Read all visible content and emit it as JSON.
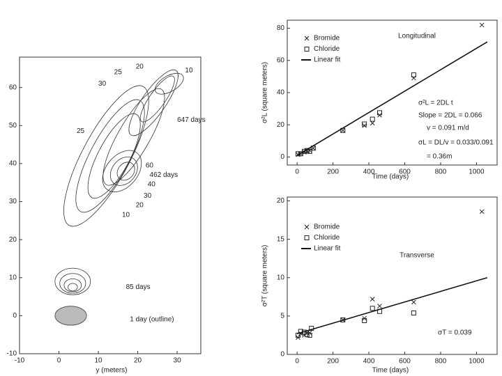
{
  "chart_data": [
    {
      "type": "contour",
      "x_label": "y (meters)",
      "xlim": [
        -10,
        36
      ],
      "ylim": [
        -10,
        68
      ],
      "xticks": [
        -10,
        0,
        10,
        20,
        30
      ],
      "yticks": [
        -10,
        0,
        10,
        20,
        30,
        40,
        50,
        60
      ],
      "annotations": [
        "20",
        "25",
        "10",
        "30",
        "647 days",
        "25",
        "60",
        "462 days",
        "40",
        "30",
        "20",
        "10",
        "85 days",
        "1 day (outline)"
      ]
    },
    {
      "type": "scatter",
      "title": "Longitudinal",
      "x_label": "Time (days)",
      "y_label": "σ²L (square meters)",
      "xlim": [
        -55,
        1115
      ],
      "ylim": [
        -5,
        85
      ],
      "xticks": [
        0,
        200,
        400,
        600,
        800,
        1000
      ],
      "yticks": [
        0,
        20,
        40,
        60,
        80
      ],
      "series": [
        {
          "name": "Bromide",
          "marker": "x",
          "color": "#222",
          "x": [
            5,
            20,
            40,
            55,
            70,
            90,
            255,
            375,
            420,
            460,
            650,
            1030
          ],
          "values": [
            1.5,
            2,
            3,
            3.5,
            4,
            5.5,
            16.5,
            19.5,
            21,
            26,
            49,
            82
          ]
        },
        {
          "name": "Chloride",
          "marker": "square",
          "color": "#222",
          "x": [
            5,
            20,
            40,
            55,
            70,
            90,
            255,
            375,
            420,
            460,
            650
          ],
          "values": [
            2,
            2,
            3.5,
            4,
            3.5,
            5.5,
            16.5,
            20.5,
            23.5,
            27.5,
            51
          ]
        },
        {
          "name": "Linear fit",
          "marker": "line",
          "color": "#111",
          "x": [
            0,
            1060
          ],
          "values": [
            1,
            71.5
          ]
        }
      ],
      "annotations": [
        "σ²L = 2DL t",
        "Slope = 2DL = 0.066",
        "v = 0.091 m/d",
        "σL = DL/v = 0.033/0.091",
        "= 0.36m"
      ]
    },
    {
      "type": "scatter",
      "title": "Transverse",
      "x_label": "Time (days)",
      "y_label": "σ²T (square meters)",
      "xlim": [
        -55,
        1115
      ],
      "ylim": [
        0,
        20.5
      ],
      "xticks": [
        0,
        200,
        400,
        600,
        800,
        1000
      ],
      "yticks": [
        0,
        5,
        10,
        15,
        20
      ],
      "series": [
        {
          "name": "Bromide",
          "marker": "x",
          "color": "#222",
          "x": [
            5,
            20,
            40,
            55,
            70,
            255,
            375,
            420,
            460,
            650,
            1030
          ],
          "values": [
            2.2,
            2.7,
            2.5,
            2.8,
            2.8,
            4.5,
            4.7,
            7.2,
            6.3,
            6.8,
            18.6
          ]
        },
        {
          "name": "Chloride",
          "marker": "square",
          "color": "#222",
          "x": [
            5,
            20,
            40,
            55,
            70,
            80,
            255,
            375,
            420,
            460,
            650
          ],
          "values": [
            2.5,
            3,
            2.9,
            2.6,
            2.5,
            3.4,
            4.5,
            4.4,
            6,
            5.6,
            5.4
          ]
        },
        {
          "name": "Linear fit",
          "marker": "line",
          "color": "#111",
          "x": [
            0,
            1060
          ],
          "values": [
            2.7,
            10
          ]
        }
      ],
      "annotations": [
        "σT = 0.039"
      ]
    }
  ]
}
